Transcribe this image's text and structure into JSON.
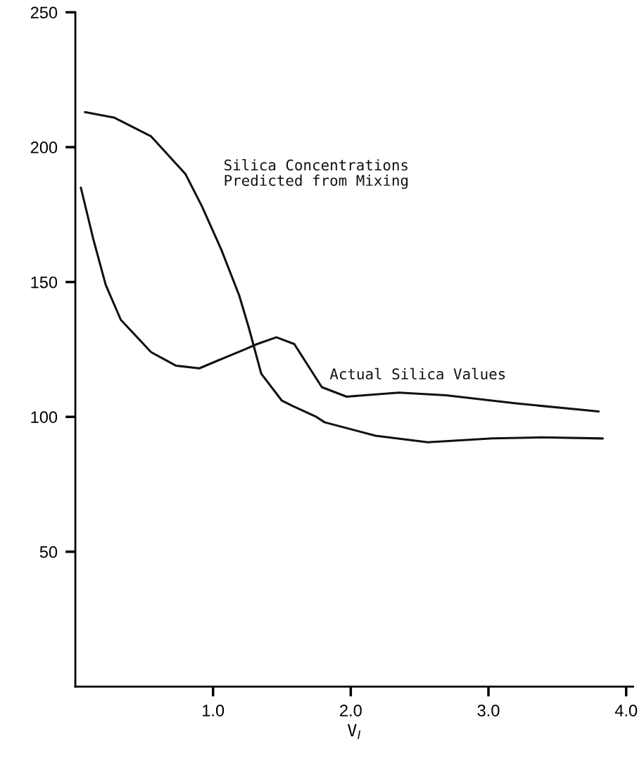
{
  "chart_data": {
    "type": "line",
    "xlabel": "V$_{I}$",
    "series": [
      {
        "name": "Silica Concentrations\nPredicted from Mixing",
        "color": "#111111",
        "x": [
          0.07,
          0.28,
          0.55,
          0.8,
          0.92,
          1.06,
          1.19,
          1.26,
          1.35,
          1.5,
          1.58,
          1.75,
          1.81,
          2.18,
          2.56,
          3.03,
          3.38,
          3.83
        ],
        "values": [
          213,
          211,
          204,
          190,
          178,
          162,
          145,
          133,
          116,
          106,
          104,
          100,
          98,
          93,
          90.6,
          92,
          92.4,
          92
        ]
      },
      {
        "name": "Actual Silica Values",
        "color": "#111111",
        "x": [
          0.04,
          0.13,
          0.22,
          0.33,
          0.55,
          0.73,
          0.9,
          1.04,
          1.23,
          1.32,
          1.46,
          1.59,
          1.67,
          1.79,
          1.97,
          2.35,
          2.69,
          3.2,
          3.8
        ],
        "values": [
          185,
          166,
          149,
          136,
          124,
          119,
          118,
          121,
          125,
          127,
          129.5,
          127,
          120.6,
          111,
          107.5,
          109,
          108,
          105,
          102
        ]
      }
    ],
    "xlim": [
      0,
      4.05
    ],
    "ylim": [
      0,
      250
    ],
    "xticks": [
      {
        "value": 1,
        "label": "1.0"
      },
      {
        "value": 2,
        "label": "2.0"
      },
      {
        "value": 3,
        "label": "3.0"
      },
      {
        "value": 4,
        "label": "4.0"
      }
    ],
    "yticks": [
      50,
      100,
      150,
      200,
      250
    ],
    "grid": false,
    "legend": false,
    "marker": "none",
    "line_style": "solid"
  }
}
